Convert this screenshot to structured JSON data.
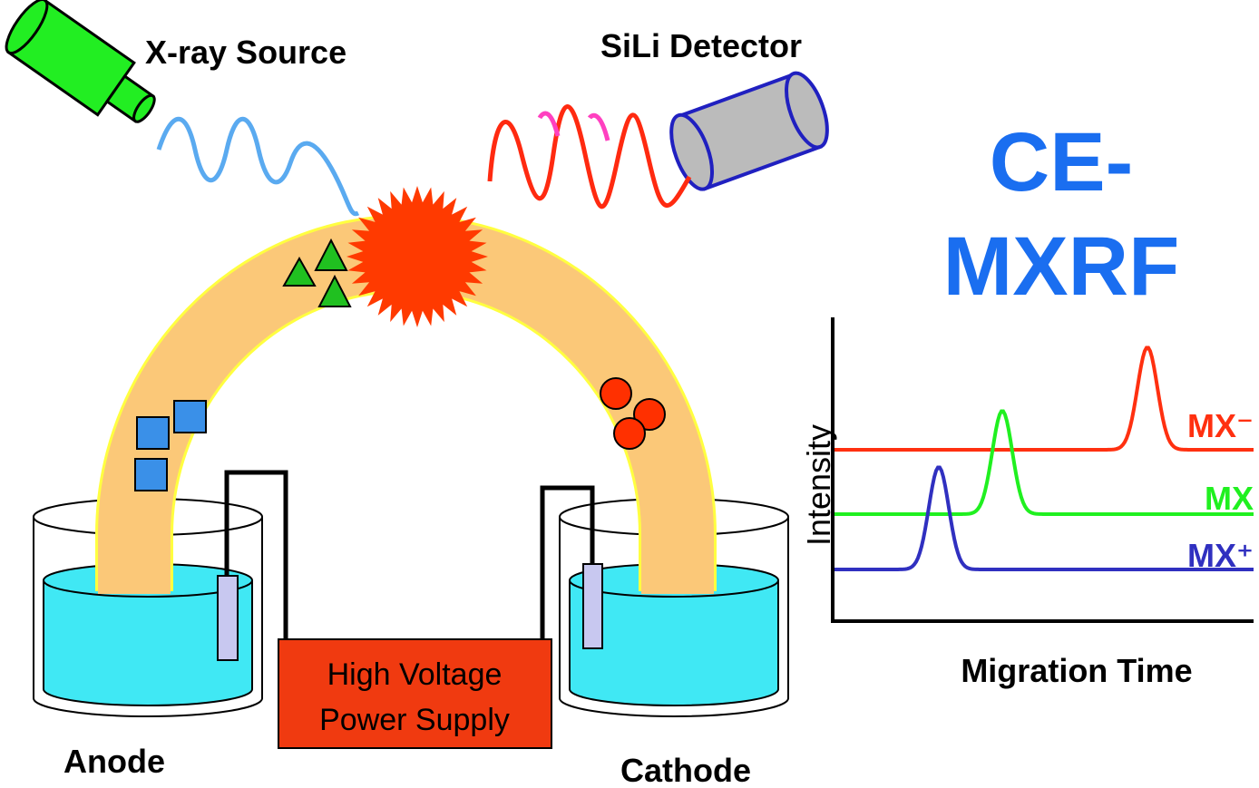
{
  "labels": {
    "source": "X-ray Source",
    "detector": "SiLi Detector",
    "title_line1": "CE-",
    "title_line2": "MXRF",
    "anode": "Anode",
    "cathode": "Cathode",
    "power_line1": "High Voltage",
    "power_line2": "Power Supply"
  },
  "graph": {
    "y_label": "Intensity",
    "x_label": "Migration Time",
    "traces": [
      {
        "label": "MX⁻",
        "color": "#ff3010"
      },
      {
        "label": "MX",
        "color": "#20f020"
      },
      {
        "label": "MX⁺",
        "color": "#3030c0"
      }
    ]
  }
}
